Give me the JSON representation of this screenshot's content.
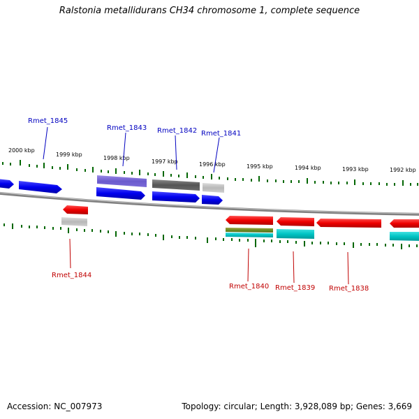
{
  "title": "Ralstonia metallidurans CH34 chromosome 1, complete sequence",
  "footer": {
    "accession": "Accession: NC_007973",
    "info": "Topology: circular; Length: 3,928,089 bp; Genes: 3,669"
  },
  "scale_labels": [
    "2000 kbp",
    "1999 kbp",
    "1998 kbp",
    "1997 kbp",
    "1996 kbp",
    "1995 kbp",
    "1994 kbp",
    "1993 kbp",
    "1992 kbp"
  ],
  "genes_top": [
    {
      "name": "Rmet_1845"
    },
    {
      "name": "Rmet_1843"
    },
    {
      "name": "Rmet_1842"
    },
    {
      "name": "Rmet_1841"
    }
  ],
  "genes_bottom": [
    {
      "name": "Rmet_1844"
    },
    {
      "name": "Rmet_1840"
    },
    {
      "name": "Rmet_1839"
    },
    {
      "name": "Rmet_1838"
    }
  ],
  "colors": {
    "forward_strand": "#0000ee",
    "reverse_strand": "#ee0000",
    "tick": "#006600",
    "backbone": "#808080",
    "label_top": "#0000c0",
    "label_bottom": "#c00000"
  }
}
